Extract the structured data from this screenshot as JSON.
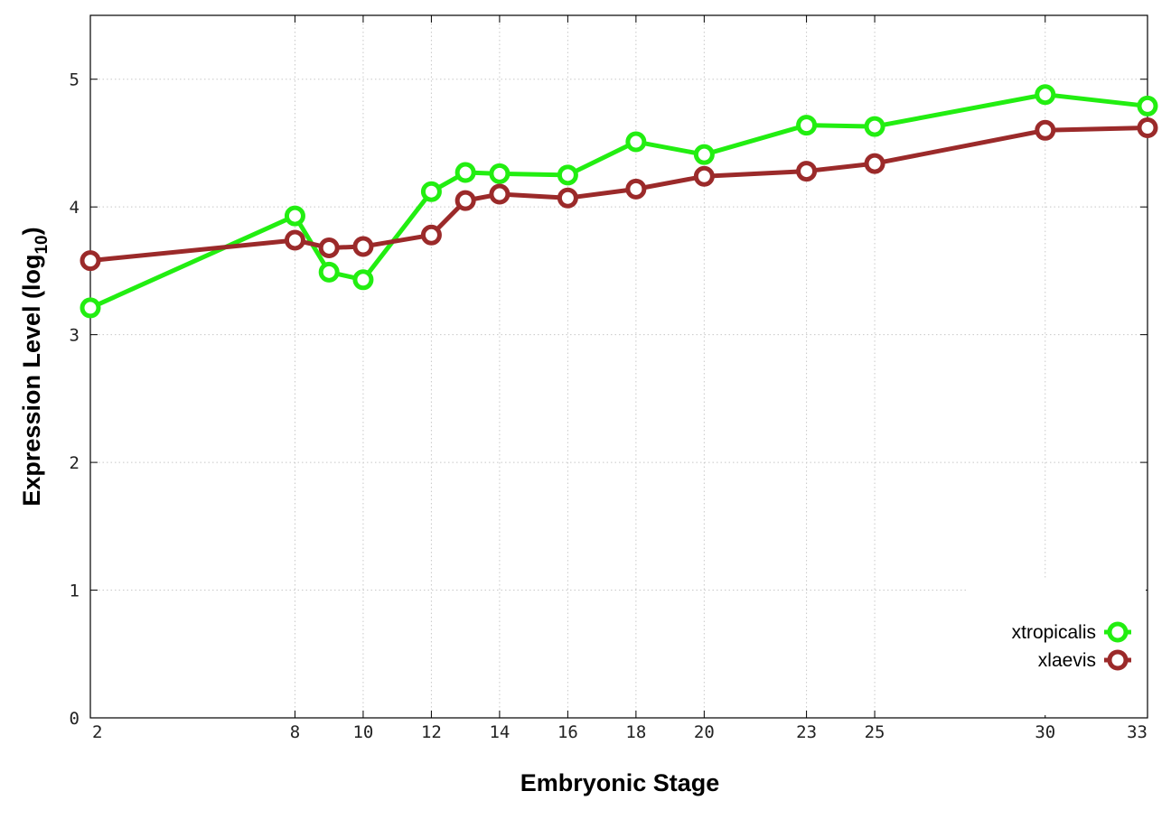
{
  "chart_data": {
    "type": "line",
    "xlabel": "Embryonic Stage",
    "ylabel": "Expression Level (log",
    "ylabel_subscript": "10",
    "ylabel_suffix": ")",
    "xlim": [
      2,
      33
    ],
    "ylim": [
      0,
      5.5
    ],
    "x_ticks": [
      2,
      8,
      10,
      12,
      14,
      16,
      18,
      20,
      23,
      25,
      30,
      33
    ],
    "y_ticks": [
      0,
      1,
      2,
      3,
      4,
      5
    ],
    "grid": true,
    "legend_position": "bottom-right",
    "series": [
      {
        "name": "xtropicalis",
        "color": "#22ee11",
        "x": [
          2,
          8,
          9,
          10,
          12,
          13,
          14,
          16,
          18,
          20,
          23,
          25,
          30,
          33
        ],
        "y": [
          3.21,
          3.93,
          3.49,
          3.43,
          4.12,
          4.27,
          4.26,
          4.25,
          4.51,
          4.41,
          4.64,
          4.63,
          4.88,
          4.79
        ]
      },
      {
        "name": "xlaevis",
        "color": "#9b2a2a",
        "x": [
          2,
          8,
          9,
          10,
          12,
          13,
          14,
          16,
          18,
          20,
          23,
          25,
          30,
          33
        ],
        "y": [
          3.58,
          3.74,
          3.68,
          3.69,
          3.78,
          4.05,
          4.1,
          4.07,
          4.14,
          4.24,
          4.28,
          4.34,
          4.6,
          4.62
        ]
      }
    ]
  }
}
